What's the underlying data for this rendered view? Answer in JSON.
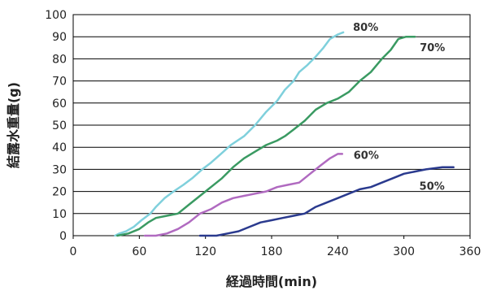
{
  "chart_data": {
    "type": "line",
    "title": "",
    "xlabel": "経過時間(min)",
    "ylabel": "結露水重量(g)",
    "xlim": [
      0,
      360
    ],
    "ylim": [
      0,
      100
    ],
    "xticks": [
      0,
      60,
      120,
      180,
      240,
      300,
      360
    ],
    "yticks": [
      0,
      10,
      20,
      30,
      40,
      50,
      60,
      70,
      80,
      90,
      100
    ],
    "grid": "horizontal",
    "series": [
      {
        "name": "80%",
        "color": "#7fd0dc",
        "points": [
          [
            38,
            0
          ],
          [
            42,
            1
          ],
          [
            48,
            2
          ],
          [
            55,
            4
          ],
          [
            62,
            7
          ],
          [
            70,
            10
          ],
          [
            75,
            13
          ],
          [
            83,
            17
          ],
          [
            91,
            20
          ],
          [
            100,
            23
          ],
          [
            108,
            26
          ],
          [
            117,
            30
          ],
          [
            125,
            33
          ],
          [
            134,
            37
          ],
          [
            143,
            41
          ],
          [
            155,
            45
          ],
          [
            165,
            50
          ],
          [
            175,
            56
          ],
          [
            185,
            61
          ],
          [
            192,
            66
          ],
          [
            200,
            70
          ],
          [
            205,
            74
          ],
          [
            212,
            77
          ],
          [
            220,
            81
          ],
          [
            227,
            85
          ],
          [
            233,
            89
          ],
          [
            240,
            91
          ],
          [
            245,
            92
          ]
        ]
      },
      {
        "name": "70%",
        "color": "#3a9a62",
        "points": [
          [
            40,
            0
          ],
          [
            50,
            1
          ],
          [
            60,
            3
          ],
          [
            68,
            6
          ],
          [
            75,
            8
          ],
          [
            85,
            9
          ],
          [
            95,
            10
          ],
          [
            105,
            14
          ],
          [
            115,
            18
          ],
          [
            125,
            22
          ],
          [
            135,
            26
          ],
          [
            145,
            31
          ],
          [
            155,
            35
          ],
          [
            165,
            38
          ],
          [
            175,
            41
          ],
          [
            185,
            43
          ],
          [
            192,
            45
          ],
          [
            200,
            48
          ],
          [
            210,
            52
          ],
          [
            220,
            57
          ],
          [
            230,
            60
          ],
          [
            240,
            62
          ],
          [
            250,
            65
          ],
          [
            260,
            70
          ],
          [
            270,
            74
          ],
          [
            280,
            80
          ],
          [
            288,
            84
          ],
          [
            295,
            89
          ],
          [
            302,
            90
          ],
          [
            310,
            90
          ]
        ]
      },
      {
        "name": "60%",
        "color": "#b06ac0",
        "points": [
          [
            65,
            0
          ],
          [
            75,
            0
          ],
          [
            85,
            1
          ],
          [
            95,
            3
          ],
          [
            105,
            6
          ],
          [
            115,
            10
          ],
          [
            125,
            12
          ],
          [
            135,
            15
          ],
          [
            145,
            17
          ],
          [
            155,
            18
          ],
          [
            165,
            19
          ],
          [
            175,
            20
          ],
          [
            185,
            22
          ],
          [
            195,
            23
          ],
          [
            205,
            24
          ],
          [
            215,
            28
          ],
          [
            225,
            32
          ],
          [
            233,
            35
          ],
          [
            240,
            37
          ],
          [
            244,
            37
          ]
        ]
      },
      {
        "name": "50%",
        "color": "#2a3a8e",
        "points": [
          [
            115,
            0
          ],
          [
            130,
            0
          ],
          [
            140,
            1
          ],
          [
            150,
            2
          ],
          [
            160,
            4
          ],
          [
            170,
            6
          ],
          [
            180,
            7
          ],
          [
            190,
            8
          ],
          [
            200,
            9
          ],
          [
            210,
            10
          ],
          [
            220,
            13
          ],
          [
            230,
            15
          ],
          [
            240,
            17
          ],
          [
            250,
            19
          ],
          [
            260,
            21
          ],
          [
            270,
            22
          ],
          [
            280,
            24
          ],
          [
            290,
            26
          ],
          [
            300,
            28
          ],
          [
            310,
            29
          ],
          [
            320,
            30
          ],
          [
            335,
            31
          ],
          [
            345,
            31
          ]
        ]
      }
    ],
    "series_labels": [
      "80%",
      "70%",
      "60%",
      "50%"
    ]
  }
}
